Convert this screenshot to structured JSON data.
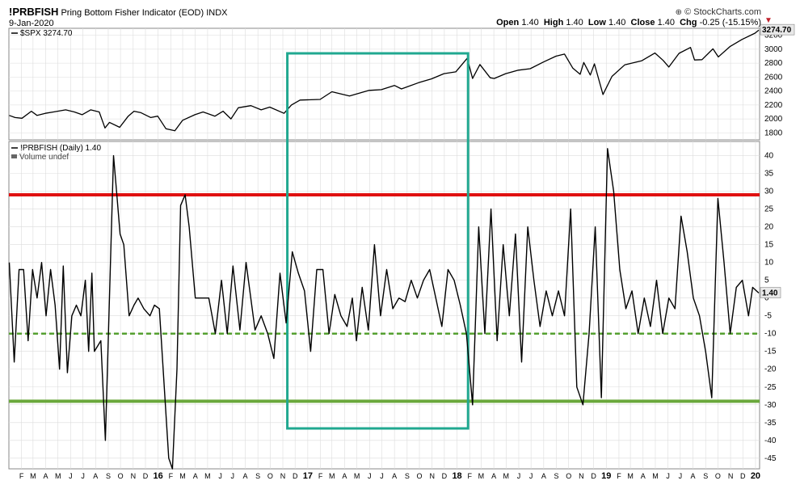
{
  "header": {
    "symbol": "!PRBFISH",
    "name": "Pring Bottom Fisher Indicator (EOD)",
    "exchange": "INDX",
    "date": "9-Jan-2020",
    "copyright": "© StockCharts.com",
    "open_label": "Open",
    "open": "1.40",
    "high_label": "High",
    "high": "1.40",
    "low_label": "Low",
    "low": "1.40",
    "close_label": "Close",
    "close": "1.40",
    "chg_label": "Chg",
    "chg": "-0.25 (-15.15%)",
    "chg_icon": "down-triangle-icon"
  },
  "colors": {
    "line": "#000000",
    "red_level": "#e01010",
    "green_dashed": "#55a030",
    "green_solid": "#6aa83c",
    "box": "#20a890",
    "grid": "#dcdcdc",
    "price_tag": "#e8e8e8"
  },
  "chart_data": [
    {
      "type": "line",
      "legend": "$SPX 3274.70",
      "last_value": "3274.70",
      "x_start": "2015-01",
      "x_end": "2020-01",
      "ylim": [
        1700,
        3300
      ],
      "y_ticks": [
        1800,
        2000,
        2200,
        2400,
        2600,
        2800,
        3000,
        3200
      ],
      "series": [
        {
          "name": "$SPX",
          "points": [
            [
              "2015-01-02",
              2050
            ],
            [
              "2015-01-16",
              2020
            ],
            [
              "2015-02-02",
              2010
            ],
            [
              "2015-02-25",
              2110
            ],
            [
              "2015-03-11",
              2050
            ],
            [
              "2015-03-31",
              2080
            ],
            [
              "2015-04-20",
              2100
            ],
            [
              "2015-05-20",
              2130
            ],
            [
              "2015-06-10",
              2100
            ],
            [
              "2015-06-29",
              2060
            ],
            [
              "2015-07-20",
              2130
            ],
            [
              "2015-08-10",
              2100
            ],
            [
              "2015-08-24",
              1870
            ],
            [
              "2015-09-04",
              1950
            ],
            [
              "2015-09-29",
              1880
            ],
            [
              "2015-10-20",
              2040
            ],
            [
              "2015-11-03",
              2110
            ],
            [
              "2015-11-20",
              2090
            ],
            [
              "2015-12-14",
              2020
            ],
            [
              "2015-12-31",
              2040
            ],
            [
              "2016-01-20",
              1860
            ],
            [
              "2016-02-11",
              1830
            ],
            [
              "2016-03-01",
              1980
            ],
            [
              "2016-03-31",
              2060
            ],
            [
              "2016-04-20",
              2100
            ],
            [
              "2016-05-19",
              2040
            ],
            [
              "2016-06-08",
              2110
            ],
            [
              "2016-06-27",
              2000
            ],
            [
              "2016-07-15",
              2160
            ],
            [
              "2016-08-15",
              2190
            ],
            [
              "2016-09-09",
              2130
            ],
            [
              "2016-09-30",
              2170
            ],
            [
              "2016-11-04",
              2080
            ],
            [
              "2016-11-22",
              2200
            ],
            [
              "2016-12-13",
              2270
            ],
            [
              "2017-01-31",
              2280
            ],
            [
              "2017-03-01",
              2390
            ],
            [
              "2017-04-13",
              2330
            ],
            [
              "2017-05-31",
              2410
            ],
            [
              "2017-06-30",
              2420
            ],
            [
              "2017-08-01",
              2480
            ],
            [
              "2017-08-18",
              2430
            ],
            [
              "2017-09-29",
              2520
            ],
            [
              "2017-10-31",
              2575
            ],
            [
              "2017-11-30",
              2650
            ],
            [
              "2017-12-29",
              2675
            ],
            [
              "2018-01-26",
              2870
            ],
            [
              "2018-02-08",
              2580
            ],
            [
              "2018-02-26",
              2780
            ],
            [
              "2018-03-23",
              2590
            ],
            [
              "2018-04-02",
              2580
            ],
            [
              "2018-04-30",
              2650
            ],
            [
              "2018-05-31",
              2700
            ],
            [
              "2018-06-29",
              2720
            ],
            [
              "2018-07-31",
              2815
            ],
            [
              "2018-08-31",
              2900
            ],
            [
              "2018-09-21",
              2930
            ],
            [
              "2018-10-11",
              2730
            ],
            [
              "2018-10-29",
              2640
            ],
            [
              "2018-11-07",
              2810
            ],
            [
              "2018-11-23",
              2630
            ],
            [
              "2018-12-03",
              2790
            ],
            [
              "2018-12-24",
              2350
            ],
            [
              "2019-01-15",
              2610
            ],
            [
              "2019-02-15",
              2775
            ],
            [
              "2019-03-29",
              2835
            ],
            [
              "2019-04-30",
              2945
            ],
            [
              "2019-05-20",
              2840
            ],
            [
              "2019-06-03",
              2745
            ],
            [
              "2019-06-28",
              2940
            ],
            [
              "2019-07-26",
              3025
            ],
            [
              "2019-08-05",
              2845
            ],
            [
              "2019-08-23",
              2850
            ],
            [
              "2019-09-19",
              3005
            ],
            [
              "2019-10-02",
              2890
            ],
            [
              "2019-10-31",
              3040
            ],
            [
              "2019-11-29",
              3140
            ],
            [
              "2019-12-31",
              3230
            ],
            [
              "2020-01-09",
              3275
            ]
          ]
        }
      ]
    },
    {
      "type": "line",
      "legend": "!PRBFISH (Daily) 1.40",
      "volume_note": "Volume undef",
      "last_value": "1.40",
      "x_start": "2015-01",
      "x_end": "2020-01",
      "ylim": [
        -48,
        44
      ],
      "y_ticks": [
        -45,
        -40,
        -35,
        -30,
        -25,
        -20,
        -15,
        -10,
        -5,
        0,
        5,
        10,
        15,
        20,
        25,
        30,
        35,
        40
      ],
      "reference_lines": [
        {
          "value": 29,
          "style": "solid",
          "color": "red"
        },
        {
          "value": -10,
          "style": "dashed",
          "color": "green"
        },
        {
          "value": -29,
          "style": "solid",
          "color": "green"
        }
      ],
      "x_tick_labels": [
        "F",
        "M",
        "A",
        "M",
        "J",
        "J",
        "A",
        "S",
        "O",
        "N",
        "D",
        "16",
        "F",
        "M",
        "A",
        "M",
        "J",
        "J",
        "A",
        "S",
        "O",
        "N",
        "D",
        "17",
        "F",
        "M",
        "A",
        "M",
        "J",
        "J",
        "A",
        "S",
        "O",
        "N",
        "D",
        "18",
        "F",
        "M",
        "A",
        "M",
        "J",
        "J",
        "A",
        "S",
        "O",
        "N",
        "D",
        "19",
        "F",
        "M",
        "A",
        "M",
        "J",
        "J",
        "A",
        "S",
        "O",
        "N",
        "D",
        "20"
      ],
      "series": [
        {
          "name": "!PRBFISH",
          "points": [
            [
              "2015-01-02",
              10
            ],
            [
              "2015-01-14",
              -18
            ],
            [
              "2015-01-26",
              8
            ],
            [
              "2015-02-06",
              8
            ],
            [
              "2015-02-17",
              -12
            ],
            [
              "2015-02-28",
              8
            ],
            [
              "2015-03-11",
              0
            ],
            [
              "2015-03-22",
              10
            ],
            [
              "2015-04-02",
              -5
            ],
            [
              "2015-04-13",
              8
            ],
            [
              "2015-04-24",
              -2
            ],
            [
              "2015-05-05",
              -20
            ],
            [
              "2015-05-14",
              9
            ],
            [
              "2015-05-24",
              -21
            ],
            [
              "2015-06-04",
              -5
            ],
            [
              "2015-06-15",
              -2
            ],
            [
              "2015-06-26",
              -5
            ],
            [
              "2015-07-07",
              5
            ],
            [
              "2015-07-15",
              -15
            ],
            [
              "2015-07-23",
              7
            ],
            [
              "2015-07-29",
              -15
            ],
            [
              "2015-08-14",
              -12
            ],
            [
              "2015-08-25",
              -40
            ],
            [
              "2015-09-14",
              40
            ],
            [
              "2015-09-22",
              29
            ],
            [
              "2015-09-30",
              18
            ],
            [
              "2015-10-09",
              15
            ],
            [
              "2015-10-22",
              -5
            ],
            [
              "2015-11-03",
              -2
            ],
            [
              "2015-11-13",
              0
            ],
            [
              "2015-11-27",
              -3
            ],
            [
              "2015-12-12",
              -5
            ],
            [
              "2015-12-23",
              -2
            ],
            [
              "2016-01-04",
              -3
            ],
            [
              "2016-01-27",
              -45
            ],
            [
              "2016-02-05",
              -48
            ],
            [
              "2016-02-16",
              -20
            ],
            [
              "2016-02-25",
              26
            ],
            [
              "2016-03-07",
              29
            ],
            [
              "2016-03-17",
              20
            ],
            [
              "2016-04-01",
              0
            ],
            [
              "2016-04-16",
              0
            ],
            [
              "2016-05-04",
              0
            ],
            [
              "2016-05-20",
              -10
            ],
            [
              "2016-06-04",
              5
            ],
            [
              "2016-06-18",
              -10
            ],
            [
              "2016-07-02",
              9
            ],
            [
              "2016-07-19",
              -9
            ],
            [
              "2016-08-03",
              10
            ],
            [
              "2016-08-25",
              -9
            ],
            [
              "2016-09-09",
              -5
            ],
            [
              "2016-09-25",
              -10
            ],
            [
              "2016-10-10",
              -17
            ],
            [
              "2016-10-25",
              7
            ],
            [
              "2016-11-09",
              -7
            ],
            [
              "2016-11-24",
              13
            ],
            [
              "2016-12-09",
              7
            ],
            [
              "2016-12-24",
              2
            ],
            [
              "2017-01-08",
              -15
            ],
            [
              "2017-01-23",
              8
            ],
            [
              "2017-02-07",
              8
            ],
            [
              "2017-02-22",
              -10
            ],
            [
              "2017-03-08",
              1
            ],
            [
              "2017-03-23",
              -5
            ],
            [
              "2017-04-07",
              -8
            ],
            [
              "2017-04-20",
              0
            ],
            [
              "2017-04-30",
              -12
            ],
            [
              "2017-05-14",
              3
            ],
            [
              "2017-05-29",
              -9
            ],
            [
              "2017-06-13",
              15
            ],
            [
              "2017-06-28",
              -5
            ],
            [
              "2017-07-13",
              8
            ],
            [
              "2017-07-28",
              -3
            ],
            [
              "2017-08-12",
              0
            ],
            [
              "2017-08-27",
              -1
            ],
            [
              "2017-09-11",
              5
            ],
            [
              "2017-09-26",
              0
            ],
            [
              "2017-10-11",
              5
            ],
            [
              "2017-10-26",
              8
            ],
            [
              "2017-11-10",
              0
            ],
            [
              "2017-11-25",
              -8
            ],
            [
              "2017-12-10",
              8
            ],
            [
              "2017-12-25",
              5
            ],
            [
              "2018-01-09",
              -2
            ],
            [
              "2018-01-24",
              -10
            ],
            [
              "2018-02-08",
              -30
            ],
            [
              "2018-02-23",
              20
            ],
            [
              "2018-03-10",
              -10
            ],
            [
              "2018-03-25",
              25
            ],
            [
              "2018-04-09",
              -12
            ],
            [
              "2018-04-24",
              15
            ],
            [
              "2018-05-09",
              -5
            ],
            [
              "2018-05-24",
              18
            ],
            [
              "2018-06-08",
              -18
            ],
            [
              "2018-06-23",
              20
            ],
            [
              "2018-07-08",
              5
            ],
            [
              "2018-07-23",
              -8
            ],
            [
              "2018-08-07",
              2
            ],
            [
              "2018-08-22",
              -5
            ],
            [
              "2018-09-06",
              2
            ],
            [
              "2018-09-21",
              -5
            ],
            [
              "2018-10-06",
              25
            ],
            [
              "2018-10-21",
              -25
            ],
            [
              "2018-11-05",
              -30
            ],
            [
              "2018-11-20",
              -10
            ],
            [
              "2018-12-05",
              20
            ],
            [
              "2018-12-20",
              -28
            ],
            [
              "2019-01-04",
              42
            ],
            [
              "2019-01-19",
              30
            ],
            [
              "2019-02-03",
              8
            ],
            [
              "2019-02-18",
              -3
            ],
            [
              "2019-03-05",
              2
            ],
            [
              "2019-03-20",
              -10
            ],
            [
              "2019-04-04",
              0
            ],
            [
              "2019-04-19",
              -8
            ],
            [
              "2019-05-04",
              5
            ],
            [
              "2019-05-19",
              -10
            ],
            [
              "2019-06-03",
              0
            ],
            [
              "2019-06-18",
              -3
            ],
            [
              "2019-07-03",
              23
            ],
            [
              "2019-07-18",
              13
            ],
            [
              "2019-08-02",
              0
            ],
            [
              "2019-08-17",
              -5
            ],
            [
              "2019-09-01",
              -15
            ],
            [
              "2019-09-16",
              -28
            ],
            [
              "2019-10-01",
              28
            ],
            [
              "2019-10-16",
              10
            ],
            [
              "2019-10-31",
              -10
            ],
            [
              "2019-11-15",
              3
            ],
            [
              "2019-11-30",
              5
            ],
            [
              "2019-12-15",
              -5
            ],
            [
              "2019-12-25",
              3
            ],
            [
              "2020-01-09",
              1.4
            ]
          ]
        }
      ]
    }
  ]
}
